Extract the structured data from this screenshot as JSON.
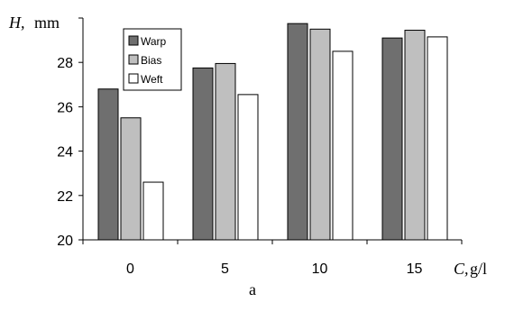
{
  "chart_data": {
    "type": "bar",
    "categories": [
      "0",
      "5",
      "10",
      "15"
    ],
    "series": [
      {
        "name": "Warp",
        "values": [
          26.8,
          27.75,
          29.75,
          29.1
        ],
        "color": "#6f6f6f"
      },
      {
        "name": "Bias",
        "values": [
          25.5,
          27.95,
          29.5,
          29.45
        ],
        "color": "#bfbfbf"
      },
      {
        "name": "Weft",
        "values": [
          22.6,
          26.55,
          28.5,
          29.15
        ],
        "color": "#ffffff"
      }
    ],
    "ylim": [
      20,
      30
    ],
    "yticks": [
      "20",
      "22",
      "24",
      "26",
      "28"
    ],
    "ylabel_symbol": "H,",
    "ylabel_unit": "mm",
    "xlabel_symbol": "C,",
    "xlabel_unit": "g/l",
    "legend_position": "top-left",
    "grid": false
  },
  "caption": "a"
}
